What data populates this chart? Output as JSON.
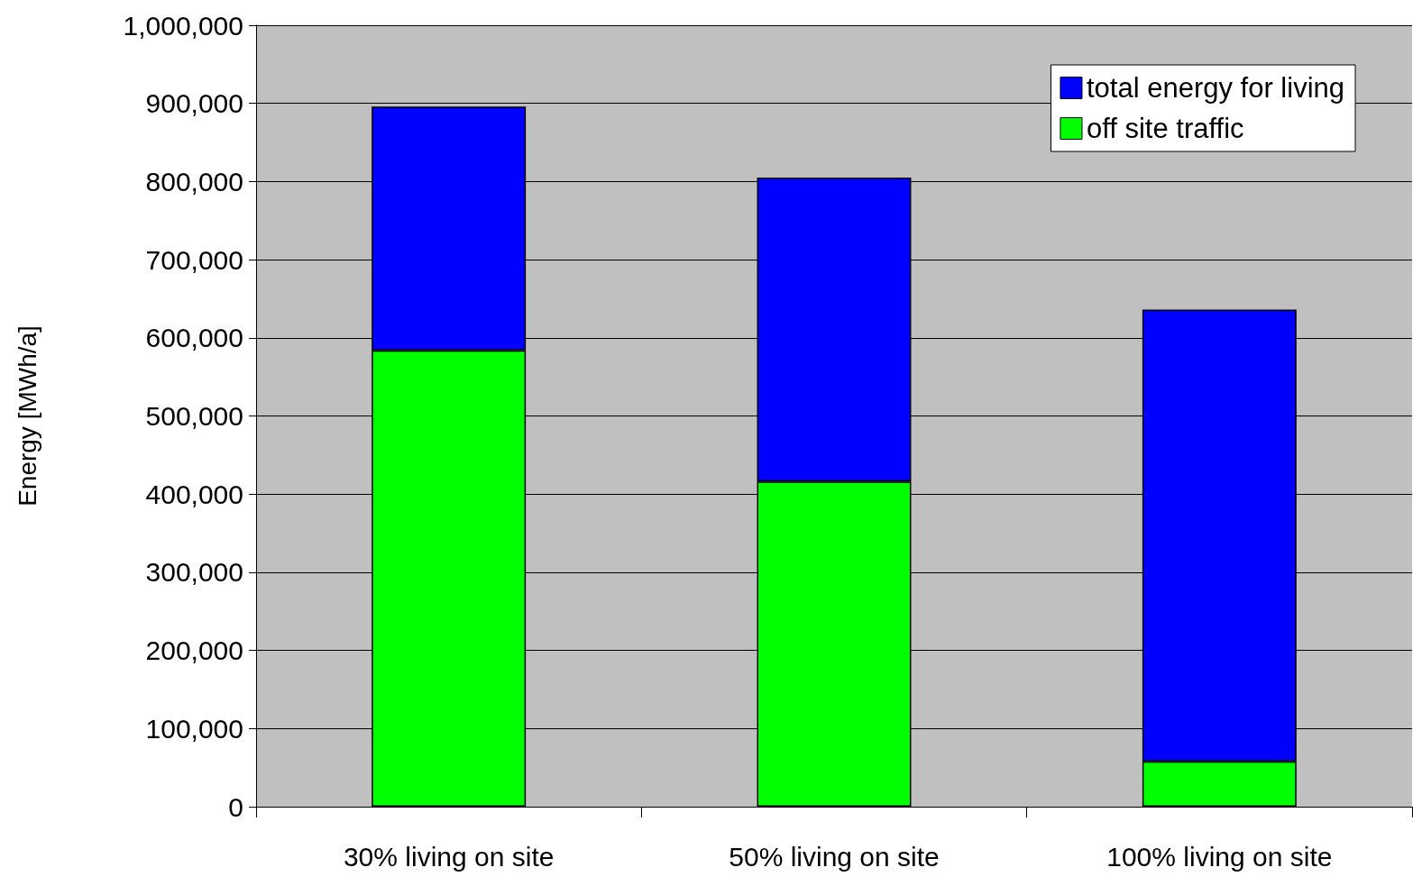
{
  "chart_data": {
    "type": "bar",
    "stacked": true,
    "ylabel": "Energy [MWh/a]",
    "categories": [
      "30% living on site",
      "50% living on site",
      "100% living on site"
    ],
    "series": [
      {
        "name": "off site traffic",
        "color": "#00ff00",
        "values": [
          584000,
          416000,
          58000
        ]
      },
      {
        "name": "total energy for living",
        "color": "#0000ff",
        "values": [
          312000,
          389000,
          578000
        ]
      }
    ],
    "ylim": [
      0,
      1000000
    ],
    "yticks": [
      0,
      {
        "value": 100000,
        "label": "100,000"
      },
      {
        "value": 200000,
        "label": "200,000"
      },
      {
        "value": 300000,
        "label": "300,000"
      },
      {
        "value": 400000,
        "label": "400,000"
      },
      {
        "value": 500000,
        "label": "500,000"
      },
      {
        "value": 600000,
        "label": "600,000"
      },
      {
        "value": 700000,
        "label": "700,000"
      },
      {
        "value": 800000,
        "label": "800,000"
      },
      {
        "value": 900000,
        "label": "900,000"
      },
      {
        "value": 1000000,
        "label": "1,000,000"
      }
    ],
    "grid": "y",
    "legend": "top right"
  }
}
